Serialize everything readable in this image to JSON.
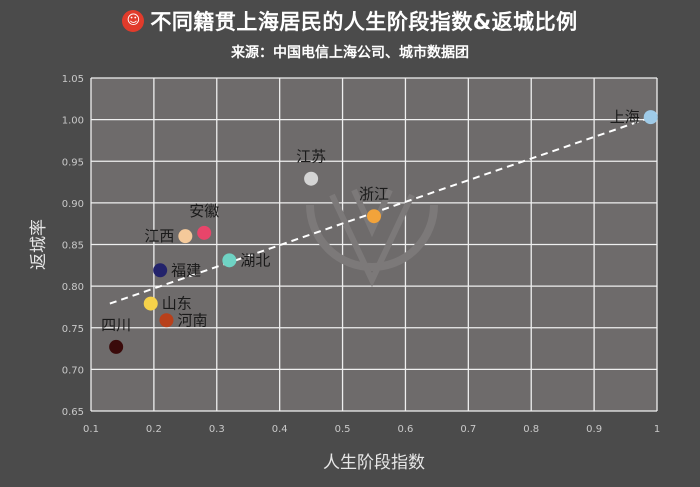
{
  "header": {
    "title": "不同籍贯上海居民的人生阶段指数&返城比例",
    "subtitle": "来源：中国电信上海公司、城市数据团",
    "logo_icon": "red-face-emoji-icon"
  },
  "chart_data": {
    "type": "scatter",
    "xlabel": "人生阶段指数",
    "ylabel": "返城率",
    "xlim": [
      0.1,
      1.0
    ],
    "ylim": [
      0.65,
      1.05
    ],
    "xticks": [
      "0.1",
      "0.2",
      "0.3",
      "0.4",
      "0.5",
      "0.6",
      "0.7",
      "0.8",
      "0.9",
      "1"
    ],
    "yticks": [
      "0.65",
      "0.70",
      "0.75",
      "0.80",
      "0.85",
      "0.90",
      "0.95",
      "1.00",
      "1.05"
    ],
    "grid": true,
    "points": [
      {
        "label": "上海",
        "x": 0.99,
        "y": 1.003,
        "color": "#9fcbe8",
        "label_pos": "left"
      },
      {
        "label": "江苏",
        "x": 0.45,
        "y": 0.929,
        "color": "#d4d4d4",
        "label_pos": "top"
      },
      {
        "label": "浙江",
        "x": 0.55,
        "y": 0.884,
        "color": "#f2a33a",
        "label_pos": "top"
      },
      {
        "label": "安徽",
        "x": 0.28,
        "y": 0.864,
        "color": "#e8456a",
        "label_pos": "top"
      },
      {
        "label": "江西",
        "x": 0.25,
        "y": 0.86,
        "color": "#f4c99a",
        "label_pos": "left"
      },
      {
        "label": "湖北",
        "x": 0.32,
        "y": 0.831,
        "color": "#6fd3c4",
        "label_pos": "right"
      },
      {
        "label": "福建",
        "x": 0.21,
        "y": 0.819,
        "color": "#23236b",
        "label_pos": "right"
      },
      {
        "label": "山东",
        "x": 0.195,
        "y": 0.779,
        "color": "#f6d24a",
        "label_pos": "right"
      },
      {
        "label": "河南",
        "x": 0.22,
        "y": 0.759,
        "color": "#b8401b",
        "label_pos": "right"
      },
      {
        "label": "四川",
        "x": 0.14,
        "y": 0.727,
        "color": "#3a0a0a",
        "label_pos": "top"
      }
    ],
    "trendline": {
      "x": [
        0.13,
        0.98
      ],
      "y": [
        0.779,
        1.0
      ],
      "style": "dashed",
      "color": "#ffffff"
    }
  }
}
